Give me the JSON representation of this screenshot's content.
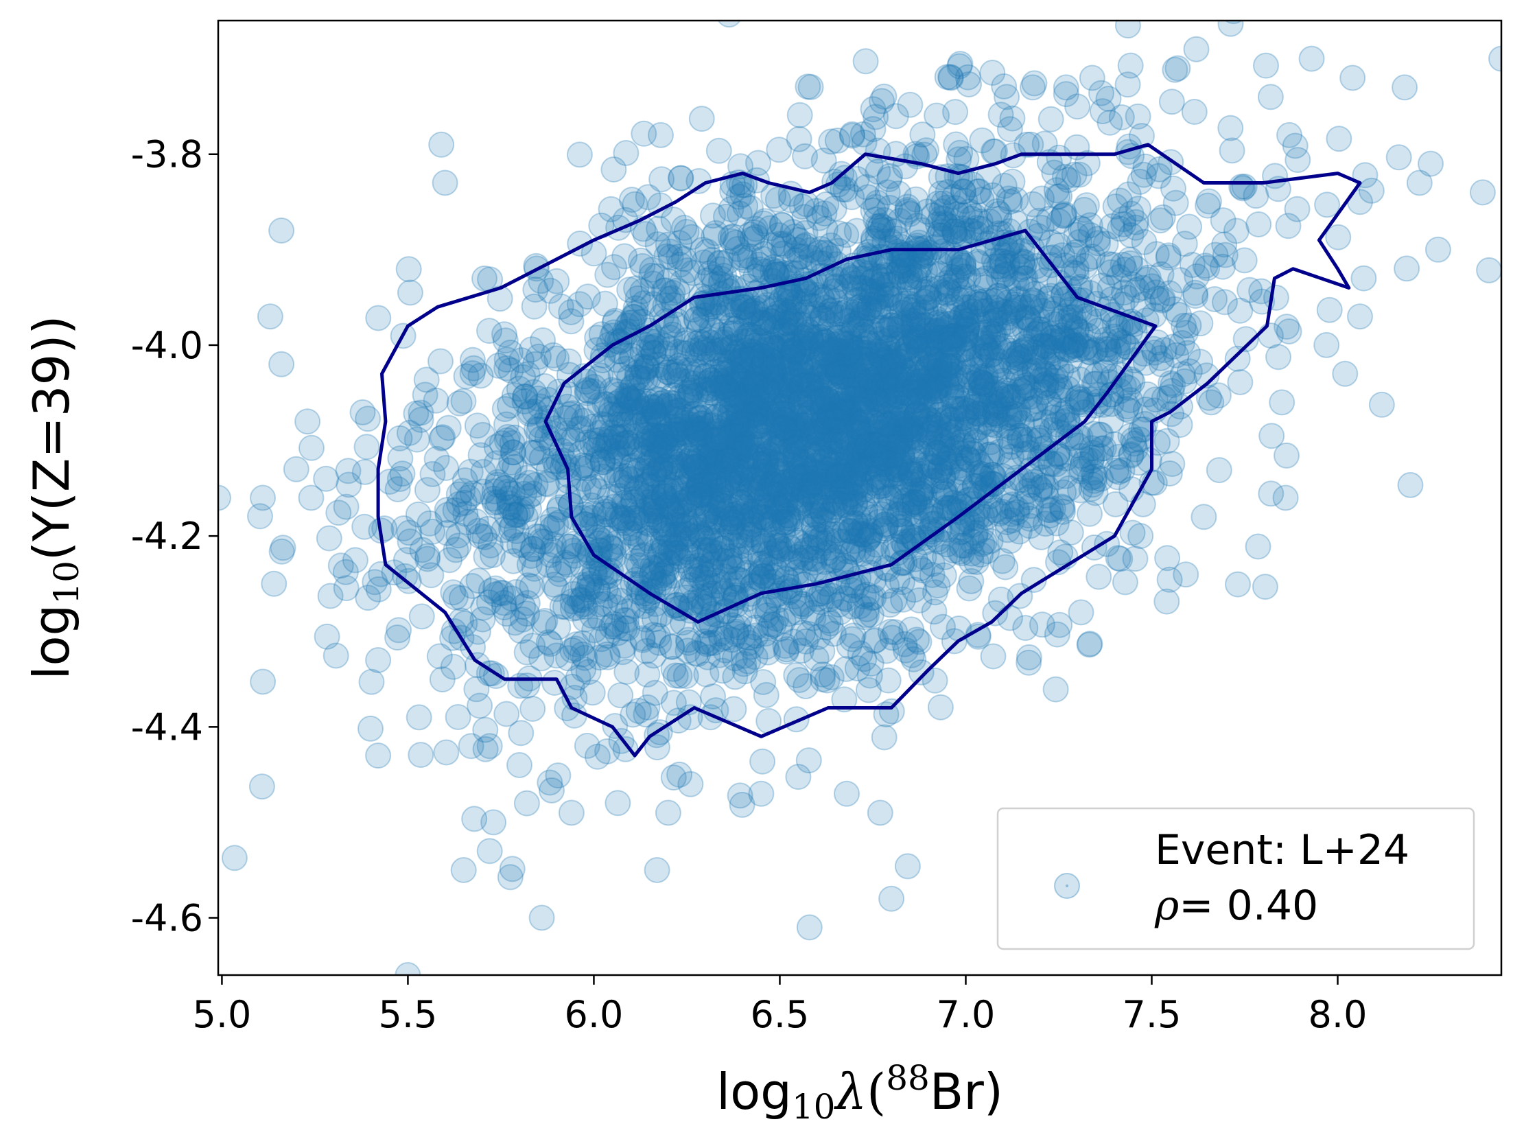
{
  "chart_data": {
    "type": "scatter",
    "title": "",
    "xlabel": {
      "prefix": "log",
      "sub": "10",
      "greek": "λ",
      "open": "(",
      "sup": "88",
      "element": "Br)"
    },
    "ylabel": {
      "prefix": "log",
      "sub": "10",
      "rest": "(Y(Z=39))"
    },
    "xlim": [
      4.99,
      8.44
    ],
    "ylim": [
      -4.66,
      -3.66
    ],
    "xticks": [
      5.0,
      5.5,
      6.0,
      6.5,
      7.0,
      7.5,
      8.0
    ],
    "xtick_labels": [
      "5.0",
      "5.5",
      "6.0",
      "6.5",
      "7.0",
      "7.5",
      "8.0"
    ],
    "yticks": [
      -3.8,
      -4.0,
      -4.2,
      -4.4,
      -4.6
    ],
    "ytick_labels": [
      "-3.8",
      "-4.0",
      "-4.2",
      "-4.4",
      "-4.6"
    ],
    "grid": false,
    "legend": {
      "position": "lower-right",
      "line1": "Event: L+24",
      "rho_symbol": "ρ",
      "line2_rest": "= 0.40"
    },
    "scatter_style": {
      "color": "#1f77b4",
      "alpha": 0.2
    },
    "contour_style": {
      "color": "#00008b"
    },
    "scatter_cloud": {
      "n_points": 4500,
      "mean_x": 6.6,
      "mean_y": -4.08,
      "sd_x": 0.48,
      "sd_y": 0.13,
      "correlation": 0.4,
      "seed": 24
    },
    "outlier_points": [
      [
        4.99,
        -4.16
      ],
      [
        5.11,
        -4.16
      ],
      [
        5.13,
        -3.97
      ],
      [
        5.14,
        -4.25
      ],
      [
        5.16,
        -3.88
      ],
      [
        5.16,
        -4.02
      ],
      [
        5.2,
        -4.13
      ],
      [
        5.23,
        -4.08
      ],
      [
        5.24,
        -4.16
      ],
      [
        5.28,
        -4.14
      ],
      [
        5.42,
        -4.43
      ],
      [
        5.42,
        -4.33
      ],
      [
        5.5,
        -4.66
      ],
      [
        5.53,
        -4.39
      ],
      [
        5.59,
        -3.79
      ],
      [
        5.6,
        -3.83
      ],
      [
        5.65,
        -4.55
      ],
      [
        5.67,
        -4.42
      ],
      [
        5.72,
        -4.53
      ],
      [
        5.72,
        -4.42
      ],
      [
        5.73,
        -4.5
      ],
      [
        5.8,
        -4.44
      ],
      [
        5.82,
        -4.48
      ],
      [
        5.86,
        -4.6
      ],
      [
        5.94,
        -4.49
      ],
      [
        6.17,
        -4.55
      ],
      [
        6.2,
        -4.49
      ],
      [
        6.23,
        -4.45
      ],
      [
        6.26,
        -4.46
      ],
      [
        6.45,
        -4.47
      ],
      [
        6.58,
        -4.61
      ],
      [
        6.68,
        -4.47
      ],
      [
        6.77,
        -4.49
      ],
      [
        6.8,
        -4.58
      ],
      [
        6.96,
        -3.72
      ],
      [
        6.18,
        -3.78
      ],
      [
        7.11,
        -3.74
      ],
      [
        7.18,
        -3.73
      ],
      [
        7.27,
        -3.73
      ],
      [
        7.3,
        -3.75
      ],
      [
        7.34,
        -3.72
      ],
      [
        7.57,
        -3.71
      ],
      [
        7.62,
        -3.69
      ],
      [
        7.72,
        -3.65
      ],
      [
        7.82,
        -3.74
      ],
      [
        7.93,
        -3.7
      ],
      [
        8.04,
        -3.72
      ],
      [
        8.18,
        -3.73
      ],
      [
        8.06,
        -3.85
      ],
      [
        8.22,
        -3.83
      ],
      [
        8.25,
        -3.81
      ],
      [
        8.27,
        -3.9
      ],
      [
        8.39,
        -3.84
      ],
      [
        8.44,
        -3.7
      ],
      [
        8.02,
        -4.03
      ],
      [
        7.86,
        -4.16
      ],
      [
        7.85,
        -4.06
      ],
      [
        7.64,
        -4.18
      ],
      [
        7.47,
        -4.2
      ],
      [
        7.31,
        -4.28
      ],
      [
        7.87,
        -3.78
      ],
      [
        8.06,
        -3.97
      ],
      [
        8.07,
        -3.93
      ],
      [
        7.97,
        -4.0
      ],
      [
        7.82,
        -3.99
      ],
      [
        7.66,
        -4.06
      ]
    ],
    "contours": [
      {
        "level": "outer",
        "points": [
          [
            5.43,
            -4.03
          ],
          [
            5.5,
            -3.98
          ],
          [
            5.58,
            -3.96
          ],
          [
            5.75,
            -3.94
          ],
          [
            5.85,
            -3.92
          ],
          [
            6.0,
            -3.89
          ],
          [
            6.12,
            -3.87
          ],
          [
            6.22,
            -3.85
          ],
          [
            6.3,
            -3.83
          ],
          [
            6.4,
            -3.82
          ],
          [
            6.47,
            -3.83
          ],
          [
            6.58,
            -3.84
          ],
          [
            6.64,
            -3.83
          ],
          [
            6.73,
            -3.8
          ],
          [
            6.88,
            -3.81
          ],
          [
            6.98,
            -3.82
          ],
          [
            7.08,
            -3.81
          ],
          [
            7.15,
            -3.8
          ],
          [
            7.28,
            -3.8
          ],
          [
            7.4,
            -3.8
          ],
          [
            7.49,
            -3.79
          ],
          [
            7.64,
            -3.83
          ],
          [
            7.8,
            -3.83
          ],
          [
            8.0,
            -3.82
          ],
          [
            8.06,
            -3.83
          ],
          [
            7.95,
            -3.89
          ],
          [
            8.0,
            -3.92
          ],
          [
            8.03,
            -3.94
          ],
          [
            7.88,
            -3.92
          ],
          [
            7.83,
            -3.93
          ],
          [
            7.81,
            -3.98
          ],
          [
            7.65,
            -4.04
          ],
          [
            7.55,
            -4.07
          ],
          [
            7.5,
            -4.08
          ],
          [
            7.5,
            -4.13
          ],
          [
            7.4,
            -4.2
          ],
          [
            7.15,
            -4.26
          ],
          [
            7.07,
            -4.29
          ],
          [
            6.98,
            -4.31
          ],
          [
            6.9,
            -4.34
          ],
          [
            6.8,
            -4.38
          ],
          [
            6.63,
            -4.38
          ],
          [
            6.45,
            -4.41
          ],
          [
            6.27,
            -4.38
          ],
          [
            6.15,
            -4.41
          ],
          [
            6.11,
            -4.43
          ],
          [
            6.05,
            -4.4
          ],
          [
            5.94,
            -4.38
          ],
          [
            5.9,
            -4.35
          ],
          [
            5.76,
            -4.35
          ],
          [
            5.68,
            -4.33
          ],
          [
            5.6,
            -4.28
          ],
          [
            5.44,
            -4.23
          ],
          [
            5.42,
            -4.18
          ],
          [
            5.42,
            -4.13
          ],
          [
            5.44,
            -4.08
          ],
          [
            5.43,
            -4.03
          ]
        ]
      },
      {
        "level": "inner",
        "points": [
          [
            5.87,
            -4.08
          ],
          [
            5.92,
            -4.04
          ],
          [
            6.05,
            -4.0
          ],
          [
            6.15,
            -3.98
          ],
          [
            6.27,
            -3.95
          ],
          [
            6.45,
            -3.94
          ],
          [
            6.57,
            -3.93
          ],
          [
            6.68,
            -3.91
          ],
          [
            6.8,
            -3.9
          ],
          [
            6.98,
            -3.9
          ],
          [
            7.16,
            -3.88
          ],
          [
            7.3,
            -3.95
          ],
          [
            7.51,
            -3.98
          ],
          [
            7.38,
            -4.05
          ],
          [
            7.32,
            -4.08
          ],
          [
            7.15,
            -4.13
          ],
          [
            6.98,
            -4.18
          ],
          [
            6.8,
            -4.23
          ],
          [
            6.6,
            -4.25
          ],
          [
            6.45,
            -4.26
          ],
          [
            6.28,
            -4.29
          ],
          [
            6.15,
            -4.26
          ],
          [
            6.0,
            -4.22
          ],
          [
            5.94,
            -4.18
          ],
          [
            5.93,
            -4.13
          ],
          [
            5.87,
            -4.08
          ]
        ]
      }
    ]
  }
}
